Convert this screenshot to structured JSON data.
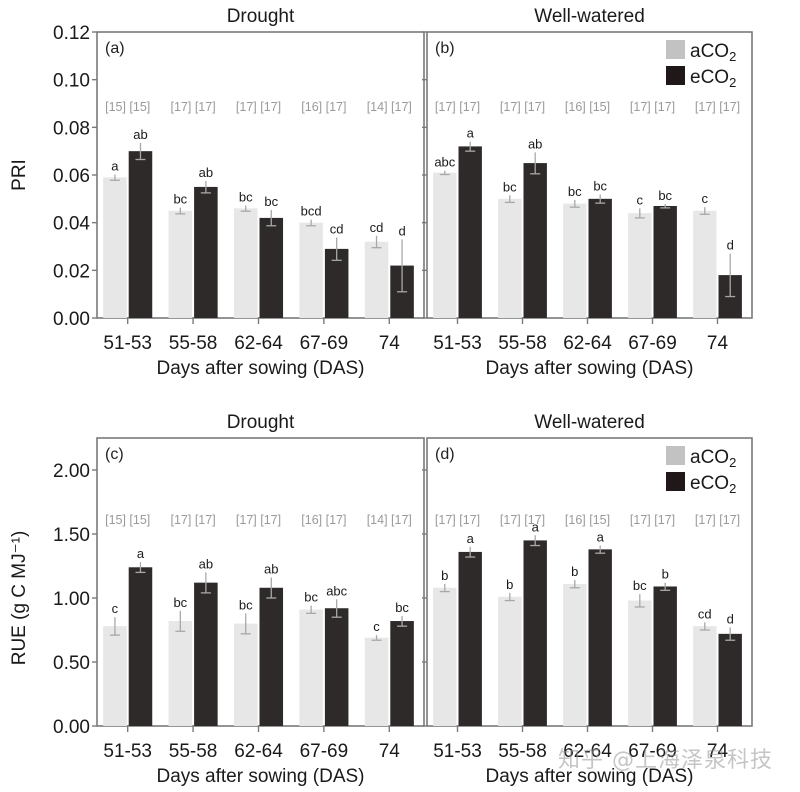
{
  "figure": {
    "watermark": "知乎 @上海泽泉科技"
  },
  "colors": {
    "aCO2": "#e6e7e6",
    "eCO2": "#2f2a2a",
    "legend_aCO2": "#c2c2c2",
    "legend_eCO2": "#201818",
    "axis": "#7a7a7a",
    "n_label": "#9a9a9a",
    "error_bar": "#a8a8a8"
  },
  "chart_data": [
    {
      "type": "bar",
      "panel": "(a)",
      "title": "Drought",
      "xlabel": "Days after sowing (DAS)",
      "ylabel": "PRI",
      "ylim": [
        0,
        0.12
      ],
      "yticks": [
        "0.00",
        "0.02",
        "0.04",
        "0.06",
        "0.08",
        "0.10",
        "0.12"
      ],
      "ytick_values": [
        0,
        0.02,
        0.04,
        0.06,
        0.08,
        0.1,
        0.12
      ],
      "categories": [
        "51-53",
        "55-58",
        "62-64",
        "67-69",
        "74"
      ],
      "legend": false,
      "n_labels": [
        [
          "[15]",
          "[15]"
        ],
        [
          "[17]",
          "[17]"
        ],
        [
          "[17]",
          "[17]"
        ],
        [
          "[16]",
          "[17]"
        ],
        [
          "[14]",
          "[17]"
        ]
      ],
      "series": [
        {
          "name": "aCO2",
          "values": [
            0.059,
            0.045,
            0.046,
            0.04,
            0.032
          ],
          "errors": [
            0.0012,
            0.0013,
            0.0012,
            0.0013,
            0.0025
          ],
          "letters": [
            "a",
            "bc",
            "bc",
            "bcd",
            "cd"
          ]
        },
        {
          "name": "eCO2",
          "values": [
            0.07,
            0.055,
            0.042,
            0.029,
            0.022
          ],
          "errors": [
            0.0035,
            0.0025,
            0.0033,
            0.0048,
            0.011
          ],
          "letters": [
            "ab",
            "ab",
            "bc",
            "cd",
            "d"
          ]
        }
      ]
    },
    {
      "type": "bar",
      "panel": "(b)",
      "title": "Well-watered",
      "xlabel": "Days after sowing (DAS)",
      "ylabel": "",
      "ylim": [
        0,
        0.12
      ],
      "yticks": [],
      "ytick_values": [
        0,
        0.02,
        0.04,
        0.06,
        0.08,
        0.1,
        0.12
      ],
      "categories": [
        "51-53",
        "55-58",
        "62-64",
        "67-69",
        "74"
      ],
      "legend": true,
      "legend_position": "top-right",
      "legend_labels": [
        "aCO",
        "eCO"
      ],
      "legend_subscript": "2",
      "n_labels": [
        [
          "[17]",
          "[17]"
        ],
        [
          "[17]",
          "[17]"
        ],
        [
          "[16]",
          "[15]"
        ],
        [
          "[17]",
          "[17]"
        ],
        [
          "[17]",
          "[17]"
        ]
      ],
      "series": [
        {
          "name": "aCO2",
          "values": [
            0.061,
            0.05,
            0.048,
            0.044,
            0.045
          ],
          "errors": [
            0.0008,
            0.0015,
            0.0015,
            0.002,
            0.0015
          ],
          "letters": [
            "abc",
            "bc",
            "bc",
            "c",
            "c"
          ]
        },
        {
          "name": "eCO2",
          "values": [
            0.072,
            0.065,
            0.05,
            0.047,
            0.018
          ],
          "errors": [
            0.002,
            0.0045,
            0.0018,
            0.0008,
            0.009
          ],
          "letters": [
            "a",
            "ab",
            "bc",
            "bc",
            "d"
          ]
        }
      ]
    },
    {
      "type": "bar",
      "panel": "(c)",
      "title": "Drought",
      "xlabel": "Days after sowing (DAS)",
      "ylabel": "RUE (g C MJ⁻¹)",
      "ylim": [
        0,
        2.25
      ],
      "yticks": [
        "0.00",
        "0.50",
        "1.00",
        "1.50",
        "2.00"
      ],
      "ytick_values": [
        0,
        0.5,
        1.0,
        1.5,
        2.0
      ],
      "categories": [
        "51-53",
        "55-58",
        "62-64",
        "67-69",
        "74"
      ],
      "legend": false,
      "n_labels": [
        [
          "[15]",
          "[15]"
        ],
        [
          "[17]",
          "[17]"
        ],
        [
          "[17]",
          "[17]"
        ],
        [
          "[16]",
          "[17]"
        ],
        [
          "[14]",
          "[17]"
        ]
      ],
      "series": [
        {
          "name": "aCO2",
          "values": [
            0.78,
            0.82,
            0.8,
            0.91,
            0.69
          ],
          "errors": [
            0.07,
            0.08,
            0.08,
            0.03,
            0.02
          ],
          "letters": [
            "c",
            "bc",
            "bc",
            "bc",
            "c"
          ]
        },
        {
          "name": "eCO2",
          "values": [
            1.24,
            1.12,
            1.08,
            0.92,
            0.82
          ],
          "errors": [
            0.04,
            0.08,
            0.08,
            0.07,
            0.04
          ],
          "letters": [
            "a",
            "ab",
            "ab",
            "abc",
            "bc"
          ]
        }
      ]
    },
    {
      "type": "bar",
      "panel": "(d)",
      "title": "Well-watered",
      "xlabel": "Days after sowing (DAS)",
      "ylabel": "",
      "ylim": [
        0,
        2.25
      ],
      "yticks": [],
      "ytick_values": [
        0,
        0.5,
        1.0,
        1.5,
        2.0
      ],
      "categories": [
        "51-53",
        "55-58",
        "62-64",
        "67-69",
        "74"
      ],
      "legend": true,
      "legend_position": "top-right",
      "legend_labels": [
        "aCO",
        "eCO"
      ],
      "legend_subscript": "2",
      "n_labels": [
        [
          "[17]",
          "[17]"
        ],
        [
          "[17]",
          "[17]"
        ],
        [
          "[16]",
          "[15]"
        ],
        [
          "[17]",
          "[17]"
        ],
        [
          "[17]",
          "[17]"
        ]
      ],
      "series": [
        {
          "name": "aCO2",
          "values": [
            1.08,
            1.01,
            1.11,
            0.98,
            0.78
          ],
          "errors": [
            0.03,
            0.03,
            0.03,
            0.05,
            0.03
          ],
          "letters": [
            "b",
            "b",
            "b",
            "bc",
            "cd"
          ]
        },
        {
          "name": "eCO2",
          "values": [
            1.36,
            1.45,
            1.38,
            1.09,
            0.72
          ],
          "errors": [
            0.04,
            0.04,
            0.03,
            0.03,
            0.05
          ],
          "letters": [
            "a",
            "a",
            "a",
            "b",
            "d"
          ]
        }
      ]
    }
  ]
}
